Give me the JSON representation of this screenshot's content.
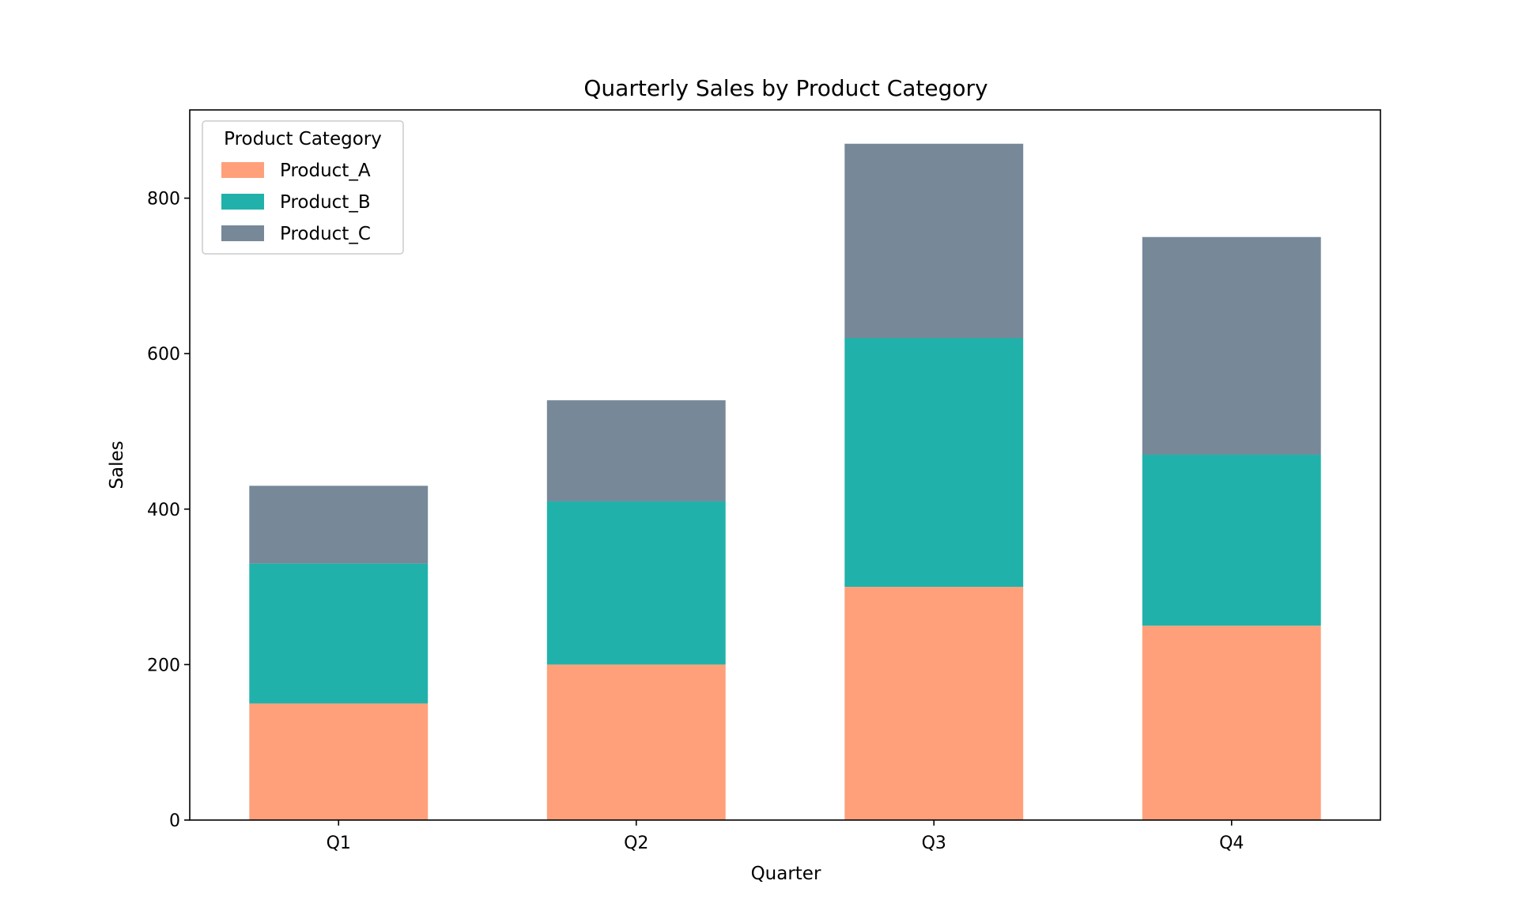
{
  "chart_data": {
    "type": "bar",
    "stacked": true,
    "title": "Quarterly Sales by Product Category",
    "xlabel": "Quarter",
    "ylabel": "Sales",
    "categories": [
      "Q1",
      "Q2",
      "Q3",
      "Q4"
    ],
    "series": [
      {
        "name": "Product_A",
        "values": [
          150,
          200,
          300,
          250
        ],
        "color": "#FFA07A"
      },
      {
        "name": "Product_B",
        "values": [
          180,
          210,
          320,
          220
        ],
        "color": "#20B2AA"
      },
      {
        "name": "Product_C",
        "values": [
          100,
          130,
          250,
          280
        ],
        "color": "#778899"
      }
    ],
    "ylim": [
      0,
      913.5
    ],
    "yticks": [
      0,
      200,
      400,
      600,
      800
    ],
    "grid": false,
    "legend": {
      "title": "Product Category",
      "placement": "upper-left"
    }
  }
}
